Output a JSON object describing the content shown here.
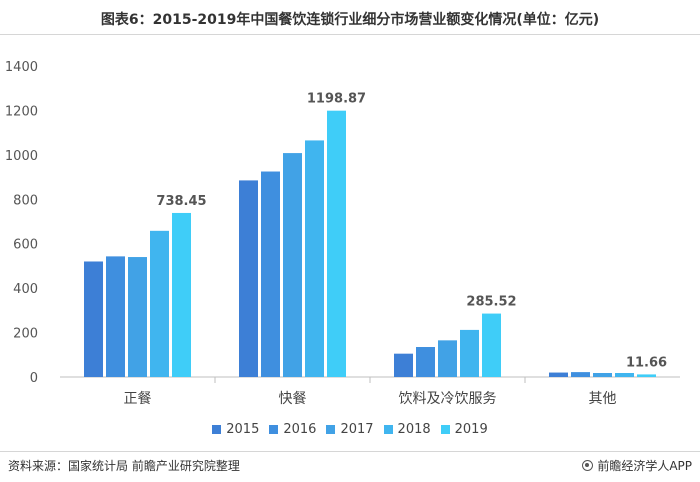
{
  "title": "图表6：2015-2019年中国餐饮连锁行业细分市场营业额变化情况(单位：亿元)",
  "source": "资料来源：国家统计局 前瞻产业研究院整理",
  "brand": "前瞻经济学人APP",
  "chart_data": {
    "type": "bar",
    "title": "图表6：2015-2019年中国餐饮连锁行业细分市场营业额变化情况(单位：亿元)",
    "categories": [
      "正餐",
      "快餐",
      "饮料及冷饮服务",
      "其他"
    ],
    "series": [
      {
        "name": "2015",
        "color": "#3d7fd6",
        "values": [
          520,
          885,
          105,
          20
        ]
      },
      {
        "name": "2016",
        "color": "#3f8fdf",
        "values": [
          543,
          925,
          135,
          22
        ]
      },
      {
        "name": "2017",
        "color": "#41a2e6",
        "values": [
          540,
          1008,
          165,
          18
        ]
      },
      {
        "name": "2018",
        "color": "#40b5ef",
        "values": [
          658,
          1065,
          212,
          18
        ]
      },
      {
        "name": "2019",
        "color": "#3fcdf8",
        "values": [
          738.45,
          1198.87,
          285.52,
          11.66
        ]
      }
    ],
    "data_labels": [
      {
        "category": "正餐",
        "series": "2019",
        "text": "738.45"
      },
      {
        "category": "快餐",
        "series": "2019",
        "text": "1198.87"
      },
      {
        "category": "饮料及冷饮服务",
        "series": "2019",
        "text": "285.52"
      },
      {
        "category": "其他",
        "series": "2019",
        "text": "11.66"
      }
    ],
    "yticks": [
      "0",
      "200",
      "400",
      "600",
      "800",
      "1000",
      "1200",
      "1400"
    ],
    "ylim": [
      0,
      1400
    ],
    "xlabel": "",
    "ylabel": "",
    "legend_position": "bottom",
    "grid": false
  }
}
